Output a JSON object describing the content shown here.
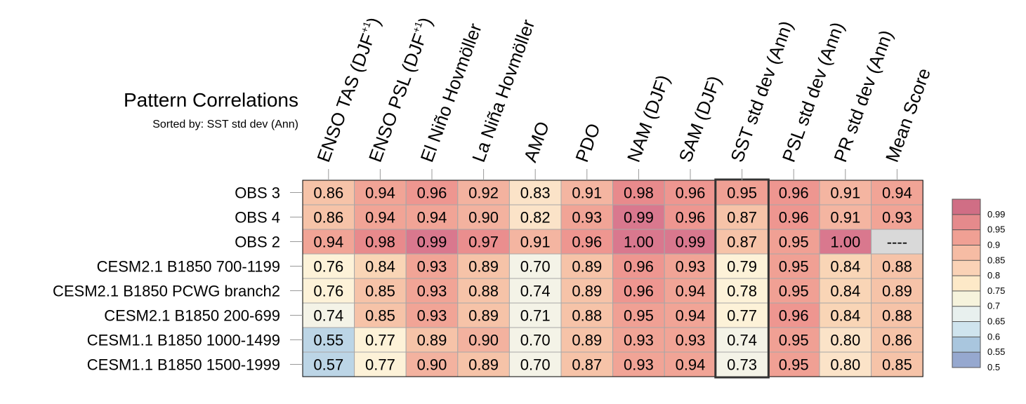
{
  "chart_data": {
    "type": "heatmap",
    "title": "Pattern Correlations",
    "subtitle": "Sorted by: SST std dev (Ann)",
    "columns": [
      [
        "ENSO TAS (DJF",
        "+1",
        ")"
      ],
      [
        "ENSO PSL (DJF",
        "+1",
        ")"
      ],
      [
        "El Niño Hovmöller"
      ],
      [
        "La Niña Hovmöller"
      ],
      [
        "AMO"
      ],
      [
        "PDO"
      ],
      [
        "NAM (DJF)"
      ],
      [
        "SAM (DJF)"
      ],
      [
        "SST std dev (Ann)"
      ],
      [
        "PSL std dev (Ann)"
      ],
      [
        "PR std dev (Ann)"
      ],
      [
        "Mean Score"
      ]
    ],
    "rows": [
      "OBS 3",
      "OBS 4",
      "OBS 2",
      "CESM2.1 B1850 700-1199",
      "CESM2.1 B1850 PCWG branch2",
      "CESM2.1 B1850 200-699",
      "CESM1.1 B1850 1000-1499",
      "CESM1.1 B1850 1500-1999"
    ],
    "values": [
      [
        "0.86",
        "0.94",
        "0.96",
        "0.92",
        "0.83",
        "0.91",
        "0.98",
        "0.96",
        "0.95",
        "0.96",
        "0.91",
        "0.94"
      ],
      [
        "0.86",
        "0.94",
        "0.94",
        "0.90",
        "0.82",
        "0.93",
        "0.99",
        "0.96",
        "0.87",
        "0.96",
        "0.91",
        "0.93"
      ],
      [
        "0.94",
        "0.98",
        "0.99",
        "0.97",
        "0.91",
        "0.96",
        "1.00",
        "0.99",
        "0.87",
        "0.95",
        "1.00",
        "----"
      ],
      [
        "0.76",
        "0.84",
        "0.93",
        "0.89",
        "0.70",
        "0.89",
        "0.96",
        "0.93",
        "0.79",
        "0.95",
        "0.84",
        "0.88"
      ],
      [
        "0.76",
        "0.85",
        "0.93",
        "0.88",
        "0.74",
        "0.89",
        "0.96",
        "0.94",
        "0.78",
        "0.95",
        "0.84",
        "0.89"
      ],
      [
        "0.74",
        "0.85",
        "0.93",
        "0.89",
        "0.71",
        "0.88",
        "0.95",
        "0.94",
        "0.77",
        "0.96",
        "0.84",
        "0.88"
      ],
      [
        "0.55",
        "0.77",
        "0.89",
        "0.90",
        "0.70",
        "0.89",
        "0.93",
        "0.93",
        "0.74",
        "0.95",
        "0.80",
        "0.86"
      ],
      [
        "0.57",
        "0.77",
        "0.90",
        "0.89",
        "0.70",
        "0.87",
        "0.93",
        "0.94",
        "0.73",
        "0.95",
        "0.80",
        "0.85"
      ]
    ],
    "cell_colors": [
      [
        "#f6c3a8",
        "#f1a496",
        "#ee9690",
        "#f3b29f",
        "#fbe3c8",
        "#f4b5a1",
        "#e88a8c",
        "#ee9690",
        "#f0a094",
        "#ee9690",
        "#f4b5a1",
        "#f1a496"
      ],
      [
        "#f6c3a8",
        "#f1a496",
        "#f1a496",
        "#f3b29f",
        "#fbe3c8",
        "#f1a496",
        "#d9788e",
        "#ee9690",
        "#f6c3a8",
        "#ee9690",
        "#f4b5a1",
        "#f1a496"
      ],
      [
        "#f1a496",
        "#e88a8c",
        "#d9788e",
        "#ea8e8e",
        "#f4b5a1",
        "#ee9690",
        "#d9788e",
        "#d9788e",
        "#f6c3a8",
        "#f0a094",
        "#d9788e",
        "#d9d9d9"
      ],
      [
        "#fdf2d8",
        "#f9d5b6",
        "#f1a496",
        "#f6c3a8",
        "#f4f3e7",
        "#f6c3a8",
        "#ee9690",
        "#f1a496",
        "#fdf2d8",
        "#f0a094",
        "#f9d5b6",
        "#f6c3a8"
      ],
      [
        "#fdf2d8",
        "#f6c3a8",
        "#f1a496",
        "#f6c3a8",
        "#f4f3e7",
        "#f6c3a8",
        "#ee9690",
        "#f1a496",
        "#fdf2d8",
        "#f0a094",
        "#f9d5b6",
        "#f6c3a8"
      ],
      [
        "#f4f3e7",
        "#f6c3a8",
        "#f1a496",
        "#f6c3a8",
        "#f4f3e7",
        "#f6c3a8",
        "#f0a094",
        "#f1a496",
        "#fdf2d8",
        "#ee9690",
        "#f9d5b6",
        "#f6c3a8"
      ],
      [
        "#bcd5e6",
        "#fdf2d8",
        "#f6c3a8",
        "#f3b29f",
        "#f4f3e7",
        "#f6c3a8",
        "#f1a496",
        "#f1a496",
        "#f4f3e7",
        "#f0a094",
        "#fbe3c8",
        "#f6c3a8"
      ],
      [
        "#bcd5e6",
        "#fdf2d8",
        "#f3b29f",
        "#f6c3a8",
        "#f4f3e7",
        "#f6c3a8",
        "#f1a496",
        "#f1a496",
        "#f4f3e7",
        "#f0a094",
        "#fbe3c8",
        "#f6c3a8"
      ]
    ],
    "highlighted_column": 8,
    "colorbar": {
      "labels": [
        "0.99",
        "0.95",
        "0.9",
        "0.85",
        "0.8",
        "0.75",
        "0.7",
        "0.65",
        "0.6",
        "0.55",
        "0.5"
      ],
      "colors": [
        "#d06e85",
        "#e58a8c",
        "#f0a094",
        "#f6bca4",
        "#fad2b6",
        "#fde9c8",
        "#f6f3dc",
        "#e8f0ee",
        "#cfe4ee",
        "#a9c6de",
        "#96a8cf"
      ]
    }
  }
}
